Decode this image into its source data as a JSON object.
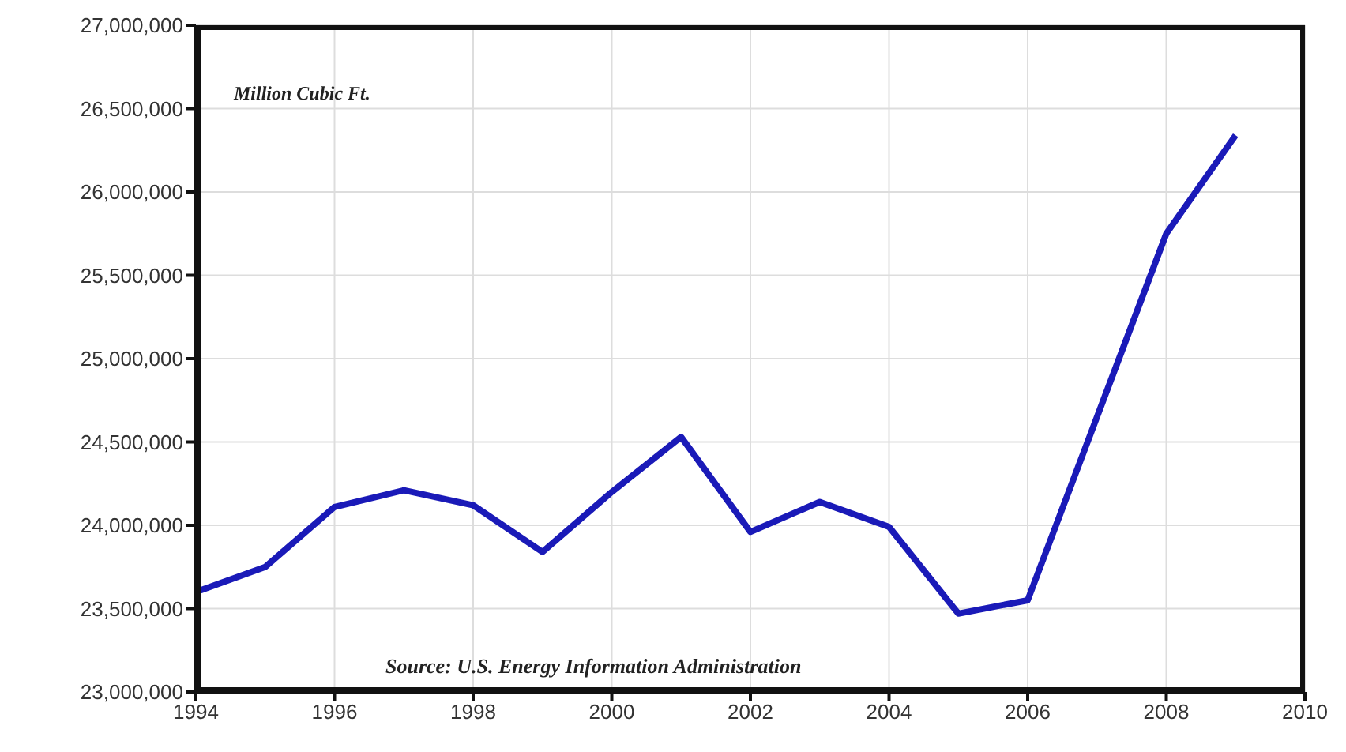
{
  "chart_data": {
    "type": "line",
    "x": [
      1994,
      1995,
      1996,
      1997,
      1998,
      1999,
      2000,
      2001,
      2002,
      2003,
      2004,
      2005,
      2006,
      2007,
      2008,
      2009
    ],
    "series": [
      {
        "color": "#1a1ab8",
        "values": [
          23600000,
          23750000,
          24110000,
          24210000,
          24120000,
          23840000,
          24200000,
          24530000,
          23960000,
          24140000,
          23990000,
          23470000,
          23550000,
          24650000,
          25750000,
          26340000
        ]
      }
    ],
    "xlim": [
      1994,
      2010
    ],
    "xticks": [
      1994,
      1996,
      1998,
      2000,
      2002,
      2004,
      2006,
      2008,
      2010
    ],
    "ylim": [
      23000000,
      27000000
    ],
    "yticks": [
      {
        "value": 23000000,
        "label": "23,000,000"
      },
      {
        "value": 23500000,
        "label": "23,500,000"
      },
      {
        "value": 24000000,
        "label": "24,000,000"
      },
      {
        "value": 24500000,
        "label": "24,500,000"
      },
      {
        "value": 25000000,
        "label": "25,000,000"
      },
      {
        "value": 25500000,
        "label": "25,500,000"
      },
      {
        "value": 26000000,
        "label": "26,000,000"
      },
      {
        "value": 26500000,
        "label": "26,500,000"
      },
      {
        "value": 27000000,
        "label": "27,000,000"
      }
    ],
    "grid": true,
    "marker": "none",
    "line_style": "solid",
    "annotations": [
      "Million Cubic Ft.",
      "Source: U.S. Energy Information Administration"
    ]
  }
}
